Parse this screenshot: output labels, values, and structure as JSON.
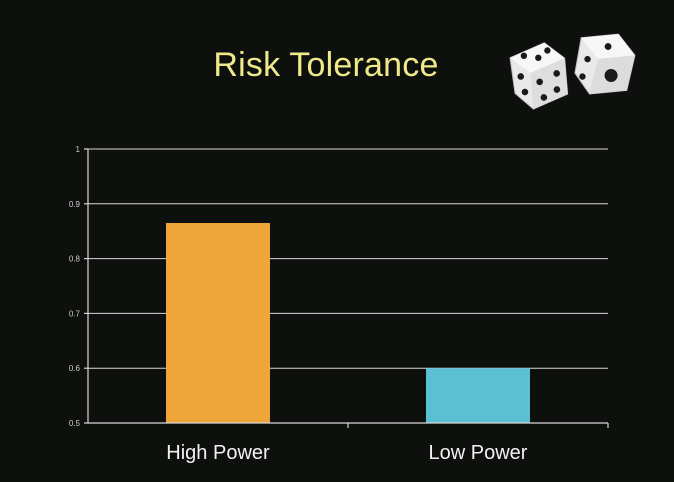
{
  "slide": {
    "title": "Risk Tolerance",
    "decoration_icon": "dice-icon"
  },
  "chart_data": {
    "type": "bar",
    "title": "",
    "xlabel": "",
    "ylabel": "",
    "categories": [
      "High Power",
      "Low Power"
    ],
    "values": [
      0.865,
      0.6
    ],
    "colors": [
      "#eea63a",
      "#5cc0d5"
    ],
    "ylim": [
      0.5,
      1
    ],
    "yticks": [
      0.5,
      0.6,
      0.7,
      0.8,
      0.9,
      1
    ],
    "ytick_labels": [
      "0.5",
      "0.6",
      "0.7",
      "0.8",
      "0.9",
      "1"
    ],
    "grid": true,
    "legend": "none"
  }
}
